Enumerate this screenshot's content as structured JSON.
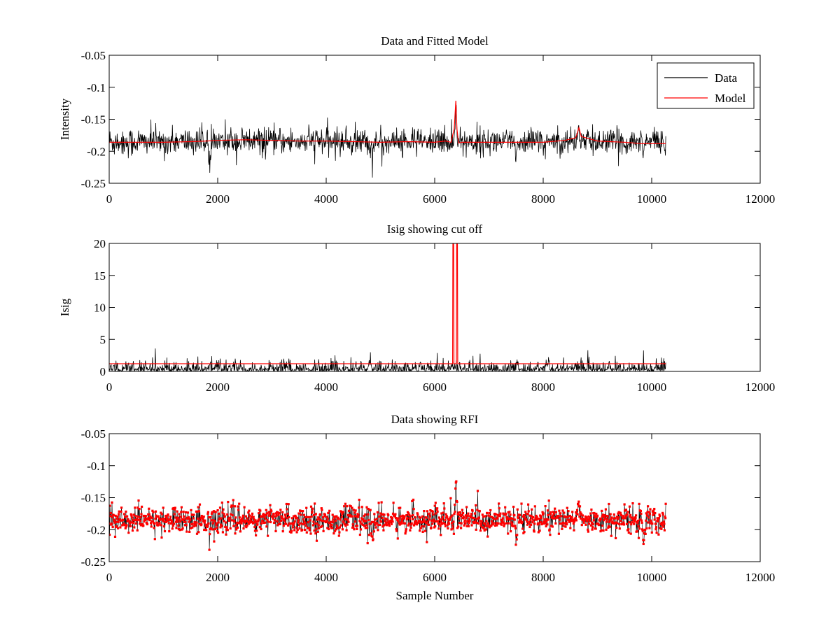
{
  "colors": {
    "data": "#000000",
    "model": "#ff0000",
    "rfi": "#ff0000",
    "axes": "#000000",
    "background": "#ffffff"
  },
  "chart_data": [
    {
      "type": "line",
      "title": "Data and Fitted Model",
      "xlabel": "",
      "ylabel": "Intensity",
      "xlim": [
        0,
        12000
      ],
      "ylim": [
        -0.25,
        -0.05
      ],
      "y_reversed": true,
      "xticks": [
        "0",
        "2000",
        "4000",
        "6000",
        "8000",
        "10000",
        "12000"
      ],
      "yticks": [
        "-0.05",
        "-0.1",
        "-0.15",
        "-0.2",
        "-0.25"
      ],
      "grid": false,
      "legend": {
        "placement": "top-right",
        "entries": [
          "Data",
          "Model"
        ]
      },
      "series": [
        {
          "name": "Data",
          "color": "#000000",
          "kind": "noise",
          "x_range": [
            0,
            10260
          ],
          "baseline": -0.185,
          "spread": 0.012,
          "features": [
            {
              "x": 6390,
              "value": -0.117
            },
            {
              "x": 8650,
              "value": -0.153
            },
            {
              "x": 1850,
              "value": -0.22
            },
            {
              "x": 4850,
              "value": -0.224
            },
            {
              "x": 7500,
              "value": -0.223
            },
            {
              "x": 9850,
              "value": -0.221
            }
          ]
        },
        {
          "name": "Model",
          "color": "#ff0000",
          "kind": "polyline",
          "x": [
            0,
            500,
            1000,
            1500,
            1800,
            2000,
            2500,
            3000,
            3500,
            4000,
            4500,
            5000,
            5500,
            6000,
            6200,
            6300,
            6360,
            6390,
            6410,
            6440,
            6500,
            6800,
            7200,
            7600,
            8000,
            8400,
            8600,
            8660,
            8700,
            9000,
            9500,
            9800,
            10260
          ],
          "y": [
            -0.186,
            -0.186,
            -0.186,
            -0.185,
            -0.184,
            -0.183,
            -0.182,
            -0.183,
            -0.184,
            -0.184,
            -0.185,
            -0.186,
            -0.185,
            -0.186,
            -0.184,
            -0.186,
            -0.165,
            -0.121,
            -0.165,
            -0.187,
            -0.186,
            -0.186,
            -0.186,
            -0.186,
            -0.186,
            -0.183,
            -0.179,
            -0.163,
            -0.177,
            -0.184,
            -0.186,
            -0.188,
            -0.188
          ]
        }
      ]
    },
    {
      "type": "line",
      "title": "Isig showing cut off",
      "xlabel": "",
      "ylabel": "Isig",
      "xlim": [
        0,
        12000
      ],
      "ylim": [
        0,
        20
      ],
      "xticks": [
        "0",
        "2000",
        "4000",
        "6000",
        "8000",
        "10000",
        "12000"
      ],
      "yticks": [
        "0",
        "5",
        "10",
        "15",
        "20"
      ],
      "grid": false,
      "series": [
        {
          "name": "",
          "color": "#000000",
          "kind": "noise-positive",
          "x_range": [
            0,
            10260
          ],
          "baseline": 0.9,
          "spread": 1.0,
          "features": [
            {
              "x": 4800,
              "value": 4.8
            },
            {
              "x": 7500,
              "value": 4.7
            },
            {
              "x": 8100,
              "value": 4.6
            },
            {
              "x": 9850,
              "value": 4.2
            }
          ]
        },
        {
          "name": "",
          "color": "#ff0000",
          "kind": "polyline",
          "x": [
            0,
            6330,
            6335,
            6350,
            6355,
            6400,
            6405,
            6420,
            6425,
            10260
          ],
          "y": [
            1.2,
            1.2,
            20,
            20,
            1.2,
            1.2,
            20,
            20,
            1.2,
            1.2
          ]
        }
      ]
    },
    {
      "type": "scatter",
      "title": "Data showing RFI",
      "xlabel": "Sample Number",
      "ylabel": "",
      "xlim": [
        0,
        12000
      ],
      "ylim": [
        -0.25,
        -0.05
      ],
      "y_reversed": true,
      "xticks": [
        "0",
        "2000",
        "4000",
        "6000",
        "8000",
        "10000",
        "12000"
      ],
      "yticks": [
        "-0.05",
        "-0.1",
        "-0.15",
        "-0.2",
        "-0.25"
      ],
      "grid": false,
      "series": [
        {
          "name": "",
          "color": "#ff0000",
          "kind": "noise-markers",
          "x_range": [
            0,
            10260
          ],
          "baseline": -0.185,
          "spread": 0.012,
          "features": [
            {
              "x": 6390,
              "value": -0.117
            },
            {
              "x": 8650,
              "value": -0.153
            },
            {
              "x": 1850,
              "value": -0.22
            },
            {
              "x": 4850,
              "value": -0.224
            },
            {
              "x": 7500,
              "value": -0.223
            },
            {
              "x": 9850,
              "value": -0.221
            }
          ]
        }
      ]
    }
  ]
}
